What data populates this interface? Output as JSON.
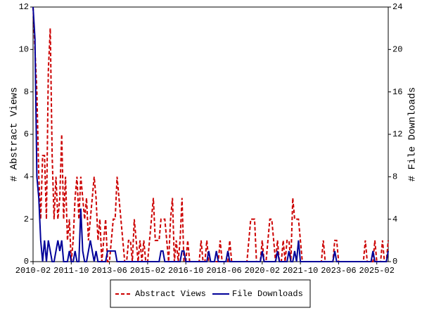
{
  "chart_data": {
    "type": "line",
    "y_label": "# Abstract Views",
    "y2_label": "# File Downloads",
    "x": [
      "2010-02",
      "2010-03",
      "2010-04",
      "2010-05",
      "2010-06",
      "2010-07",
      "2010-08",
      "2010-09",
      "2010-10",
      "2010-11",
      "2010-12",
      "2011-01",
      "2011-02",
      "2011-03",
      "2011-04",
      "2011-05",
      "2011-06",
      "2011-07",
      "2011-08",
      "2011-09",
      "2011-10",
      "2011-11",
      "2011-12",
      "2012-01",
      "2012-02",
      "2012-03",
      "2012-04",
      "2012-05",
      "2012-06",
      "2012-07",
      "2012-08",
      "2012-09",
      "2012-10",
      "2012-11",
      "2012-12",
      "2013-01",
      "2013-02",
      "2013-03",
      "2013-04",
      "2013-05",
      "2013-06",
      "2013-07",
      "2013-08",
      "2013-09",
      "2013-10",
      "2013-11",
      "2013-12",
      "2014-01",
      "2014-02",
      "2014-03",
      "2014-04",
      "2014-05",
      "2014-06",
      "2014-07",
      "2014-08",
      "2014-09",
      "2014-10",
      "2014-11",
      "2014-12",
      "2015-01",
      "2015-02",
      "2015-03",
      "2015-04",
      "2015-05",
      "2015-06",
      "2015-07",
      "2015-08",
      "2015-09",
      "2015-10",
      "2015-11",
      "2015-12",
      "2016-01",
      "2016-02",
      "2016-03",
      "2016-04",
      "2016-05",
      "2016-06",
      "2016-07",
      "2016-08",
      "2016-09",
      "2016-10",
      "2016-11",
      "2016-12",
      "2017-01",
      "2017-02",
      "2017-03",
      "2017-04",
      "2017-05",
      "2017-06",
      "2017-07",
      "2017-08",
      "2017-09",
      "2017-10",
      "2017-11",
      "2017-12",
      "2018-01",
      "2018-02",
      "2018-03",
      "2018-04",
      "2018-05",
      "2018-06",
      "2018-07",
      "2018-08",
      "2018-09",
      "2018-10",
      "2018-11",
      "2018-12",
      "2019-01",
      "2019-02",
      "2019-03",
      "2019-04",
      "2019-05",
      "2019-06",
      "2019-07",
      "2019-08",
      "2019-09",
      "2019-10",
      "2019-11",
      "2019-12",
      "2020-01",
      "2020-02",
      "2020-03",
      "2020-04",
      "2020-05",
      "2020-06",
      "2020-07",
      "2020-08",
      "2020-09",
      "2020-10",
      "2020-11",
      "2020-12",
      "2021-01",
      "2021-02",
      "2021-03",
      "2021-04",
      "2021-05",
      "2021-06",
      "2021-07",
      "2021-08",
      "2021-09",
      "2021-10",
      "2021-11",
      "2021-12",
      "2022-01",
      "2022-02",
      "2022-03",
      "2022-04",
      "2022-05",
      "2022-06",
      "2022-07",
      "2022-08",
      "2022-09",
      "2022-10",
      "2022-11",
      "2022-12",
      "2023-01",
      "2023-02",
      "2023-03",
      "2023-04",
      "2023-05",
      "2023-06",
      "2023-07",
      "2023-08",
      "2023-09",
      "2023-10",
      "2023-11",
      "2023-12",
      "2024-01",
      "2024-02",
      "2024-03",
      "2024-04",
      "2024-05",
      "2024-06",
      "2024-07",
      "2024-08",
      "2024-09",
      "2024-10",
      "2024-11",
      "2024-12",
      "2025-01",
      "2025-02",
      "2025-03",
      "2025-04",
      "2025-05",
      "2025-06",
      "2025-07",
      "2025-08"
    ],
    "xlim": [
      "2010-02",
      "2025-08"
    ],
    "xticks": [
      "2010-02",
      "2011-10",
      "2013-06",
      "2015-02",
      "2016-10",
      "2018-06",
      "2020-02",
      "2021-10",
      "2023-06",
      "2025-02"
    ],
    "ylim": [
      0,
      12
    ],
    "yticks": [
      0,
      2,
      4,
      6,
      8,
      10,
      12
    ],
    "y2lim": [
      0,
      24
    ],
    "y2ticks": [
      0,
      4,
      8,
      12,
      16,
      20,
      24
    ],
    "legend": "bottom",
    "series": [
      {
        "name": "Abstract Views",
        "color": "#cc0000",
        "dash": true,
        "values": [
          12,
          10,
          8,
          4,
          2,
          5,
          5,
          2,
          9,
          11,
          5,
          2,
          4,
          2,
          3,
          6,
          2,
          4,
          1,
          2,
          0,
          1,
          3,
          4,
          2,
          4,
          3,
          2,
          3,
          1,
          2,
          3,
          4,
          3,
          1,
          2,
          0,
          1,
          2,
          0,
          0,
          1,
          2,
          2,
          4,
          3,
          2,
          1,
          0,
          0,
          1,
          1,
          0,
          2,
          1,
          0,
          1,
          0,
          1,
          0,
          0,
          1,
          2,
          3,
          1,
          1,
          1,
          2,
          2,
          2,
          1,
          0,
          2,
          3,
          0,
          1,
          0,
          1,
          3,
          0,
          0,
          1,
          0,
          0,
          0,
          0,
          0,
          0,
          1,
          0,
          0,
          1,
          0,
          0,
          0,
          0,
          0,
          0,
          1,
          0,
          0,
          0,
          0,
          1,
          0,
          0,
          0,
          0,
          0,
          0,
          0,
          0,
          0,
          1,
          2,
          2,
          2,
          0,
          0,
          0,
          1,
          0,
          0,
          1,
          2,
          2,
          1,
          0,
          1,
          0,
          0,
          1,
          0,
          1,
          1,
          0,
          3,
          2,
          2,
          2,
          1,
          0,
          0,
          0,
          0,
          0,
          0,
          0,
          0,
          0,
          0,
          0,
          1,
          0,
          0,
          0,
          0,
          0,
          1,
          1,
          0,
          0,
          0,
          0,
          0,
          0,
          0,
          0,
          0,
          0,
          0,
          0,
          0,
          0,
          1,
          0,
          0,
          0,
          0,
          1,
          0,
          0,
          0,
          1,
          0,
          0,
          1
        ]
      },
      {
        "name": "File Downloads",
        "color": "#000099",
        "dash": false,
        "axis": "y2",
        "values": [
          24,
          21,
          8,
          6,
          2,
          0,
          2,
          0,
          2,
          1,
          0,
          0,
          1,
          2,
          1,
          2,
          0,
          0,
          0,
          1,
          0,
          0,
          1,
          0,
          0,
          5,
          1,
          0,
          0,
          1,
          2,
          1,
          0,
          1,
          0,
          0,
          0,
          0,
          0,
          1,
          1,
          1,
          1,
          1,
          0,
          0,
          0,
          0,
          0,
          0,
          0,
          0,
          0,
          0,
          0,
          0,
          0,
          0,
          0,
          0,
          0,
          0,
          0,
          0,
          0,
          0,
          0,
          1,
          1,
          0,
          0,
          0,
          0,
          0,
          0,
          0,
          0,
          0,
          1,
          1,
          0,
          0,
          0,
          0,
          0,
          0,
          0,
          0,
          0,
          0,
          0,
          0,
          1,
          0,
          0,
          0,
          1,
          0,
          0,
          0,
          0,
          0,
          1,
          0,
          0,
          0,
          0,
          0,
          0,
          0,
          0,
          0,
          0,
          0,
          0,
          0,
          0,
          0,
          0,
          0,
          1,
          0,
          0,
          0,
          0,
          0,
          0,
          0,
          1,
          0,
          0,
          0,
          0,
          0,
          1,
          0,
          0,
          1,
          0,
          2,
          0,
          0,
          0,
          0,
          0,
          0,
          0,
          0,
          0,
          0,
          0,
          0,
          0,
          0,
          0,
          0,
          0,
          0,
          1,
          0,
          0,
          0,
          0,
          0,
          0,
          0,
          0,
          0,
          0,
          0,
          0,
          0,
          0,
          0,
          0,
          0,
          0,
          0,
          1,
          0,
          0,
          0,
          0,
          0,
          0,
          0,
          1
        ]
      }
    ]
  }
}
